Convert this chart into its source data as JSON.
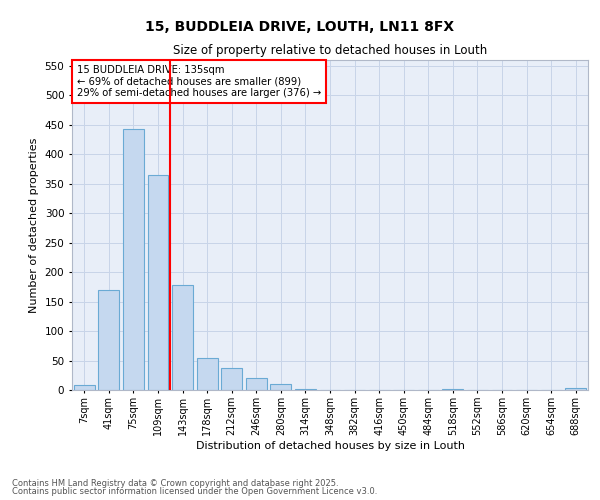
{
  "title1": "15, BUDDLEIA DRIVE, LOUTH, LN11 8FX",
  "title2": "Size of property relative to detached houses in Louth",
  "xlabel": "Distribution of detached houses by size in Louth",
  "ylabel": "Number of detached properties",
  "bar_labels": [
    "7sqm",
    "41sqm",
    "75sqm",
    "109sqm",
    "143sqm",
    "178sqm",
    "212sqm",
    "246sqm",
    "280sqm",
    "314sqm",
    "348sqm",
    "382sqm",
    "416sqm",
    "450sqm",
    "484sqm",
    "518sqm",
    "552sqm",
    "586sqm",
    "620sqm",
    "654sqm",
    "688sqm"
  ],
  "bar_values": [
    8,
    170,
    443,
    365,
    178,
    55,
    38,
    20,
    11,
    2,
    0,
    0,
    0,
    0,
    0,
    1,
    0,
    0,
    0,
    0,
    3
  ],
  "bar_color": "#c5d8ef",
  "bar_edge_color": "#6aaad4",
  "vline_x": 3.5,
  "vline_color": "red",
  "annotation_text": "15 BUDDLEIA DRIVE: 135sqm\n← 69% of detached houses are smaller (899)\n29% of semi-detached houses are larger (376) →",
  "annotation_box_color": "white",
  "annotation_box_edge": "red",
  "ylim": [
    0,
    560
  ],
  "yticks": [
    0,
    50,
    100,
    150,
    200,
    250,
    300,
    350,
    400,
    450,
    500,
    550
  ],
  "grid_color": "#c8d4e8",
  "background_color": "#e8eef8",
  "footer1": "Contains HM Land Registry data © Crown copyright and database right 2025.",
  "footer2": "Contains public sector information licensed under the Open Government Licence v3.0."
}
